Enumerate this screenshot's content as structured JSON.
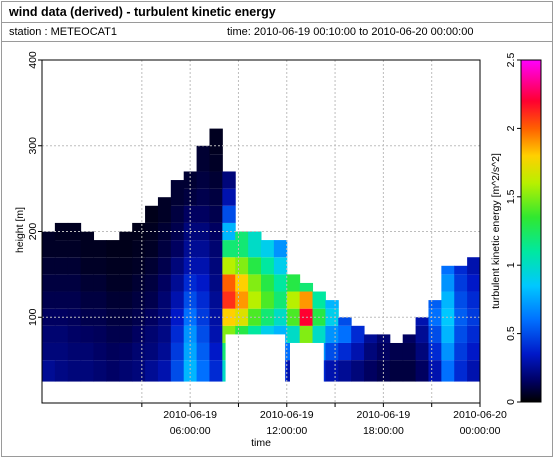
{
  "header": {
    "title": "wind data (derived) - turbulent kinetic energy",
    "station_label": "station : METEOCAT1",
    "time_label": "time: 2010-06-19 00:10:00 to 2010-06-20 00:00:00"
  },
  "chart_data": {
    "type": "heatmap",
    "title": "wind data (derived) - turbulent kinetic energy",
    "xlabel": "time",
    "ylabel": "height [m]",
    "colorbar_label": "turbulent kinetic energy [m^2/s^2]",
    "x_unit": "hours since 2010-06-19 00:00:00",
    "xlim": [
      -3.2,
      24
    ],
    "ylim": [
      0,
      400
    ],
    "x_ticks": [
      {
        "value": 3,
        "label": [
          "",
          ""
        ]
      },
      {
        "value": 6,
        "label": [
          "2010-06-19",
          "06:00:00"
        ]
      },
      {
        "value": 9,
        "label": [
          "",
          ""
        ]
      },
      {
        "value": 12,
        "label": [
          "2010-06-19",
          "12:00:00"
        ]
      },
      {
        "value": 15,
        "label": [
          "",
          ""
        ]
      },
      {
        "value": 18,
        "label": [
          "2010-06-19",
          "18:00:00"
        ]
      },
      {
        "value": 21,
        "label": [
          "",
          ""
        ]
      },
      {
        "value": 24,
        "label": [
          "2010-06-20",
          "00:00:00"
        ]
      }
    ],
    "y_ticks": [
      100,
      200,
      300,
      400
    ],
    "colorbar_range": [
      0,
      2.5
    ],
    "colorbar_ticks": [
      "0",
      "0.5",
      "1",
      "1.5",
      "2",
      "2.5"
    ],
    "grid": true,
    "height_levels": [
      40,
      60,
      80,
      100,
      120,
      140,
      160,
      180,
      200,
      220,
      240,
      260,
      280,
      300,
      320
    ],
    "columns": [
      {
        "t": -2.8,
        "top": 200,
        "v": [
          0.25,
          0.2,
          0.18,
          0.15,
          0.12,
          0.1,
          0.08,
          0.06
        ]
      },
      {
        "t": -2.0,
        "top": 210,
        "v": [
          0.22,
          0.2,
          0.18,
          0.15,
          0.12,
          0.1,
          0.08,
          0.06,
          0.05
        ]
      },
      {
        "t": -1.2,
        "top": 210,
        "v": [
          0.2,
          0.18,
          0.16,
          0.14,
          0.12,
          0.1,
          0.08,
          0.06,
          0.05
        ]
      },
      {
        "t": -0.4,
        "top": 200,
        "v": [
          0.2,
          0.18,
          0.15,
          0.12,
          0.1,
          0.08,
          0.06,
          0.05
        ]
      },
      {
        "t": 0.4,
        "top": 190,
        "v": [
          0.18,
          0.16,
          0.14,
          0.12,
          0.1,
          0.08,
          0.06,
          0.05
        ]
      },
      {
        "t": 1.2,
        "top": 190,
        "v": [
          0.16,
          0.14,
          0.12,
          0.1,
          0.08,
          0.06,
          0.05,
          0.04
        ]
      },
      {
        "t": 2.0,
        "top": 200,
        "v": [
          0.18,
          0.15,
          0.12,
          0.1,
          0.08,
          0.06,
          0.05,
          0.04
        ]
      },
      {
        "t": 2.8,
        "top": 210,
        "v": [
          0.2,
          0.18,
          0.15,
          0.12,
          0.1,
          0.08,
          0.06,
          0.05,
          0.04
        ]
      },
      {
        "t": 3.6,
        "top": 230,
        "v": [
          0.25,
          0.2,
          0.18,
          0.15,
          0.12,
          0.1,
          0.08,
          0.06,
          0.05,
          0.04
        ]
      },
      {
        "t": 4.4,
        "top": 240,
        "v": [
          0.3,
          0.25,
          0.22,
          0.2,
          0.18,
          0.15,
          0.12,
          0.1,
          0.08,
          0.06
        ]
      },
      {
        "t": 5.2,
        "top": 260,
        "v": [
          0.5,
          0.45,
          0.4,
          0.35,
          0.3,
          0.25,
          0.2,
          0.15,
          0.12,
          0.1,
          0.08
        ]
      },
      {
        "t": 6.0,
        "top": 270,
        "v": [
          0.8,
          0.75,
          0.7,
          0.6,
          0.5,
          0.4,
          0.3,
          0.25,
          0.2,
          0.15,
          0.1,
          0.08
        ]
      },
      {
        "t": 6.8,
        "top": 300,
        "v": [
          0.6,
          0.55,
          0.5,
          0.45,
          0.4,
          0.35,
          0.3,
          0.25,
          0.2,
          0.15,
          0.12,
          0.1,
          0.08
        ]
      },
      {
        "t": 7.6,
        "top": 320,
        "v": [
          0.4,
          0.35,
          0.3,
          0.28,
          0.25,
          0.22,
          0.2,
          0.18,
          0.15,
          0.12,
          0.1,
          0.08,
          0.06,
          0.05
        ]
      },
      {
        "t": 8.4,
        "top": 270,
        "v": [
          1.0,
          1.2,
          1.5,
          1.8,
          2.1,
          2.0,
          1.6,
          1.2,
          0.8,
          0.5,
          0.3,
          0.2
        ]
      },
      {
        "t": 9.2,
        "top": 200,
        "v": [
          0.6,
          0.9,
          1.3,
          1.7,
          1.9,
          1.8,
          1.5,
          1.2
        ]
      },
      {
        "t": 10.0,
        "top": 200,
        "v": [
          0.5,
          0.8,
          1.1,
          1.4,
          1.6,
          1.5,
          1.3,
          1.0
        ]
      },
      {
        "t": 10.8,
        "top": 190,
        "v": [
          0.5,
          0.7,
          0.9,
          1.2,
          1.4,
          1.3,
          1.1,
          0.9
        ]
      },
      {
        "t": 11.6,
        "top": 190,
        "v": [
          0.4,
          0.6,
          0.8,
          1.0,
          1.2,
          1.1,
          0.9,
          0.7
        ]
      },
      {
        "t": 12.4,
        "top": 150,
        "v": [
          0.3,
          0.6,
          1.0,
          1.4,
          1.6,
          1.3
        ]
      },
      {
        "t": 13.2,
        "top": 140,
        "v": [
          0.4,
          0.8,
          1.5,
          2.2,
          1.9,
          1.2
        ]
      },
      {
        "t": 14.0,
        "top": 130,
        "v": [
          0.4,
          0.7,
          1.0,
          1.3,
          1.1
        ]
      },
      {
        "t": 14.8,
        "top": 120,
        "v": [
          0.3,
          0.5,
          0.7,
          0.9,
          0.8
        ]
      },
      {
        "t": 15.6,
        "top": 100,
        "v": [
          0.25,
          0.4,
          0.6,
          0.5
        ]
      },
      {
        "t": 16.4,
        "top": 90,
        "v": [
          0.2,
          0.3,
          0.4
        ]
      },
      {
        "t": 17.2,
        "top": 80,
        "v": [
          0.15,
          0.2,
          0.25
        ]
      },
      {
        "t": 18.0,
        "top": 80,
        "v": [
          0.12,
          0.15,
          0.18
        ]
      },
      {
        "t": 18.8,
        "top": 70,
        "v": [
          0.1,
          0.12,
          0.15
        ]
      },
      {
        "t": 19.6,
        "top": 80,
        "v": [
          0.1,
          0.12,
          0.15
        ]
      },
      {
        "t": 20.4,
        "top": 100,
        "v": [
          0.15,
          0.2,
          0.25,
          0.3
        ]
      },
      {
        "t": 21.2,
        "top": 120,
        "v": [
          0.3,
          0.4,
          0.5,
          0.6,
          0.55
        ]
      },
      {
        "t": 22.0,
        "top": 160,
        "v": [
          0.6,
          0.7,
          0.8,
          0.85,
          0.8,
          0.7,
          0.6
        ]
      },
      {
        "t": 22.8,
        "top": 160,
        "v": [
          0.4,
          0.45,
          0.5,
          0.55,
          0.5,
          0.45,
          0.4
        ]
      },
      {
        "t": 23.6,
        "top": 170,
        "v": [
          0.3,
          0.35,
          0.4,
          0.45,
          0.4,
          0.35,
          0.3,
          0.25
        ]
      }
    ],
    "missing_ranges": [
      {
        "t_start": 8.2,
        "t_end": 11.9,
        "below": 80
      },
      {
        "t_start": 12.2,
        "t_end": 14.3,
        "below": 70
      }
    ]
  },
  "colors": {
    "frame": "#9a9a9a",
    "grid": "#bdbdbd",
    "plot_bg": "#ffffff"
  }
}
